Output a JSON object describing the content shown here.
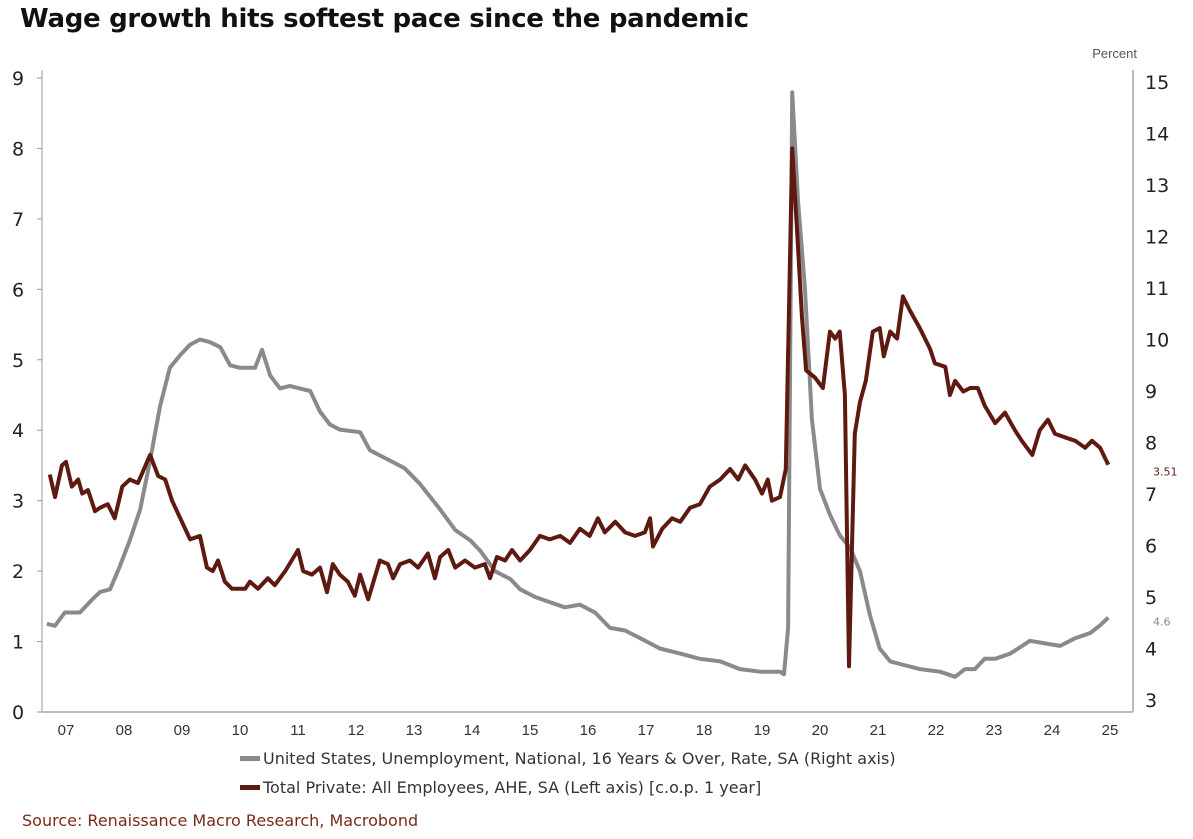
{
  "chart_data": {
    "type": "line",
    "title": "Wage growth hits softest pace since the pandemic",
    "right_axis_unit": "Percent",
    "x_tick_labels": [
      "07",
      "08",
      "09",
      "10",
      "11",
      "12",
      "13",
      "14",
      "15",
      "16",
      "17",
      "18",
      "19",
      "20",
      "21",
      "22",
      "23",
      "24",
      "25"
    ],
    "left_axis": {
      "ylim": [
        0,
        9
      ],
      "ticks": [
        0,
        1,
        2,
        3,
        4,
        5,
        6,
        7,
        8,
        9
      ]
    },
    "right_axis": {
      "ylim": [
        3,
        15
      ],
      "ticks": [
        3,
        4,
        5,
        6,
        7,
        8,
        9,
        10,
        11,
        12,
        13,
        14,
        15
      ]
    },
    "grid": false,
    "legend_placement": "bottom",
    "colors": {
      "unemployment": "#8a8a8a",
      "ahe": "#5e1a10",
      "source": "#7a2a1a"
    },
    "series": [
      {
        "name": "United States, Unemployment, National, 16 Years & Over, Rate, SA (Right axis)",
        "axis": "right",
        "end_label": "4.6",
        "points": [
          [
            2007.17,
            4.48
          ],
          [
            2007.31,
            4.44
          ],
          [
            2007.48,
            4.7
          ],
          [
            2007.74,
            4.7
          ],
          [
            2007.95,
            4.95
          ],
          [
            2008.09,
            5.1
          ],
          [
            2008.26,
            5.15
          ],
          [
            2008.43,
            5.6
          ],
          [
            2008.6,
            6.1
          ],
          [
            2008.78,
            6.7
          ],
          [
            2008.95,
            7.65
          ],
          [
            2009.12,
            8.7
          ],
          [
            2009.29,
            9.45
          ],
          [
            2009.47,
            9.7
          ],
          [
            2009.64,
            9.9
          ],
          [
            2009.81,
            10.0
          ],
          [
            2009.98,
            9.95
          ],
          [
            2010.16,
            9.85
          ],
          [
            2010.33,
            9.5
          ],
          [
            2010.5,
            9.45
          ],
          [
            2010.76,
            9.45
          ],
          [
            2010.88,
            9.8
          ],
          [
            2011.02,
            9.3
          ],
          [
            2011.19,
            9.05
          ],
          [
            2011.36,
            9.1
          ],
          [
            2011.53,
            9.05
          ],
          [
            2011.71,
            9.0
          ],
          [
            2011.88,
            8.6
          ],
          [
            2012.05,
            8.35
          ],
          [
            2012.22,
            8.25
          ],
          [
            2012.57,
            8.2
          ],
          [
            2012.74,
            7.85
          ],
          [
            2012.91,
            7.75
          ],
          [
            2013.17,
            7.6
          ],
          [
            2013.34,
            7.5
          ],
          [
            2013.6,
            7.2
          ],
          [
            2013.95,
            6.7
          ],
          [
            2014.21,
            6.3
          ],
          [
            2014.47,
            6.1
          ],
          [
            2014.64,
            5.9
          ],
          [
            2014.9,
            5.5
          ],
          [
            2015.16,
            5.35
          ],
          [
            2015.33,
            5.15
          ],
          [
            2015.59,
            5.0
          ],
          [
            2015.84,
            4.9
          ],
          [
            2016.1,
            4.8
          ],
          [
            2016.36,
            4.85
          ],
          [
            2016.62,
            4.7
          ],
          [
            2016.88,
            4.4
          ],
          [
            2017.14,
            4.35
          ],
          [
            2017.4,
            4.2
          ],
          [
            2017.74,
            4.0
          ],
          [
            2018.09,
            3.9
          ],
          [
            2018.43,
            3.8
          ],
          [
            2018.78,
            3.75
          ],
          [
            2019.12,
            3.6
          ],
          [
            2019.47,
            3.55
          ],
          [
            2019.81,
            3.55
          ],
          [
            2019.88,
            3.5
          ],
          [
            2019.95,
            4.4
          ],
          [
            2020.02,
            14.8
          ],
          [
            2020.12,
            12.7
          ],
          [
            2020.24,
            11.0
          ],
          [
            2020.36,
            8.45
          ],
          [
            2020.5,
            7.1
          ],
          [
            2020.67,
            6.6
          ],
          [
            2020.84,
            6.2
          ],
          [
            2021.02,
            5.95
          ],
          [
            2021.19,
            5.5
          ],
          [
            2021.36,
            4.65
          ],
          [
            2021.53,
            4.0
          ],
          [
            2021.71,
            3.75
          ],
          [
            2021.88,
            3.7
          ],
          [
            2022.22,
            3.6
          ],
          [
            2022.57,
            3.55
          ],
          [
            2022.83,
            3.45
          ],
          [
            2023.0,
            3.6
          ],
          [
            2023.17,
            3.6
          ],
          [
            2023.34,
            3.8
          ],
          [
            2023.52,
            3.8
          ],
          [
            2023.78,
            3.9
          ],
          [
            2024.12,
            4.15
          ],
          [
            2024.38,
            4.1
          ],
          [
            2024.64,
            4.05
          ],
          [
            2024.9,
            4.2
          ],
          [
            2025.16,
            4.3
          ],
          [
            2025.33,
            4.45
          ],
          [
            2025.47,
            4.6
          ]
        ]
      },
      {
        "name": "Total Private: All Employees, AHE, SA (Left axis) [c.o.p. 1 year]",
        "axis": "left",
        "end_label": "3.51",
        "points": [
          [
            2007.22,
            3.37
          ],
          [
            2007.31,
            3.05
          ],
          [
            2007.43,
            3.5
          ],
          [
            2007.5,
            3.55
          ],
          [
            2007.6,
            3.2
          ],
          [
            2007.71,
            3.3
          ],
          [
            2007.78,
            3.1
          ],
          [
            2007.88,
            3.15
          ],
          [
            2008.0,
            2.85
          ],
          [
            2008.09,
            2.9
          ],
          [
            2008.22,
            2.95
          ],
          [
            2008.34,
            2.75
          ],
          [
            2008.47,
            3.2
          ],
          [
            2008.6,
            3.3
          ],
          [
            2008.74,
            3.25
          ],
          [
            2008.95,
            3.65
          ],
          [
            2009.09,
            3.35
          ],
          [
            2009.21,
            3.3
          ],
          [
            2009.33,
            3.0
          ],
          [
            2009.47,
            2.75
          ],
          [
            2009.64,
            2.45
          ],
          [
            2009.81,
            2.5
          ],
          [
            2009.93,
            2.05
          ],
          [
            2010.03,
            2.0
          ],
          [
            2010.12,
            2.15
          ],
          [
            2010.24,
            1.85
          ],
          [
            2010.36,
            1.75
          ],
          [
            2010.59,
            1.75
          ],
          [
            2010.67,
            1.85
          ],
          [
            2010.81,
            1.75
          ],
          [
            2010.98,
            1.9
          ],
          [
            2011.1,
            1.8
          ],
          [
            2011.28,
            2.0
          ],
          [
            2011.5,
            2.3
          ],
          [
            2011.59,
            2.0
          ],
          [
            2011.74,
            1.95
          ],
          [
            2011.88,
            2.05
          ],
          [
            2012.0,
            1.7
          ],
          [
            2012.1,
            2.1
          ],
          [
            2012.22,
            1.95
          ],
          [
            2012.36,
            1.85
          ],
          [
            2012.48,
            1.65
          ],
          [
            2012.57,
            1.95
          ],
          [
            2012.71,
            1.6
          ],
          [
            2012.91,
            2.15
          ],
          [
            2013.05,
            2.1
          ],
          [
            2013.14,
            1.9
          ],
          [
            2013.26,
            2.1
          ],
          [
            2013.43,
            2.15
          ],
          [
            2013.57,
            2.05
          ],
          [
            2013.74,
            2.25
          ],
          [
            2013.86,
            1.9
          ],
          [
            2013.95,
            2.2
          ],
          [
            2014.09,
            2.3
          ],
          [
            2014.21,
            2.05
          ],
          [
            2014.38,
            2.15
          ],
          [
            2014.55,
            2.05
          ],
          [
            2014.72,
            2.1
          ],
          [
            2014.81,
            1.9
          ],
          [
            2014.93,
            2.2
          ],
          [
            2015.07,
            2.15
          ],
          [
            2015.19,
            2.3
          ],
          [
            2015.33,
            2.15
          ],
          [
            2015.5,
            2.3
          ],
          [
            2015.67,
            2.5
          ],
          [
            2015.84,
            2.45
          ],
          [
            2016.02,
            2.5
          ],
          [
            2016.19,
            2.4
          ],
          [
            2016.36,
            2.6
          ],
          [
            2016.53,
            2.5
          ],
          [
            2016.67,
            2.75
          ],
          [
            2016.79,
            2.55
          ],
          [
            2016.97,
            2.7
          ],
          [
            2017.14,
            2.55
          ],
          [
            2017.31,
            2.5
          ],
          [
            2017.48,
            2.55
          ],
          [
            2017.57,
            2.75
          ],
          [
            2017.62,
            2.35
          ],
          [
            2017.78,
            2.6
          ],
          [
            2017.95,
            2.75
          ],
          [
            2018.09,
            2.7
          ],
          [
            2018.26,
            2.9
          ],
          [
            2018.43,
            2.95
          ],
          [
            2018.6,
            3.2
          ],
          [
            2018.78,
            3.3
          ],
          [
            2018.95,
            3.45
          ],
          [
            2019.09,
            3.3
          ],
          [
            2019.21,
            3.5
          ],
          [
            2019.38,
            3.3
          ],
          [
            2019.5,
            3.1
          ],
          [
            2019.6,
            3.3
          ],
          [
            2019.67,
            3.0
          ],
          [
            2019.81,
            3.05
          ],
          [
            2019.91,
            3.45
          ],
          [
            2020.02,
            8.0
          ],
          [
            2020.1,
            6.9
          ],
          [
            2020.19,
            5.6
          ],
          [
            2020.26,
            4.85
          ],
          [
            2020.41,
            4.75
          ],
          [
            2020.55,
            4.6
          ],
          [
            2020.67,
            5.4
          ],
          [
            2020.76,
            5.3
          ],
          [
            2020.84,
            5.4
          ],
          [
            2020.93,
            4.5
          ],
          [
            2021.0,
            0.65
          ],
          [
            2021.1,
            3.95
          ],
          [
            2021.19,
            4.4
          ],
          [
            2021.29,
            4.7
          ],
          [
            2021.41,
            5.4
          ],
          [
            2021.53,
            5.45
          ],
          [
            2021.6,
            5.05
          ],
          [
            2021.71,
            5.4
          ],
          [
            2021.83,
            5.3
          ],
          [
            2021.93,
            5.9
          ],
          [
            2022.05,
            5.7
          ],
          [
            2022.22,
            5.45
          ],
          [
            2022.4,
            5.15
          ],
          [
            2022.48,
            4.95
          ],
          [
            2022.66,
            4.9
          ],
          [
            2022.74,
            4.5
          ],
          [
            2022.83,
            4.7
          ],
          [
            2022.97,
            4.55
          ],
          [
            2023.09,
            4.6
          ],
          [
            2023.22,
            4.6
          ],
          [
            2023.34,
            4.35
          ],
          [
            2023.52,
            4.1
          ],
          [
            2023.69,
            4.25
          ],
          [
            2023.86,
            4.0
          ],
          [
            2023.98,
            3.85
          ],
          [
            2024.16,
            3.65
          ],
          [
            2024.29,
            4.0
          ],
          [
            2024.43,
            4.15
          ],
          [
            2024.55,
            3.95
          ],
          [
            2024.72,
            3.9
          ],
          [
            2024.9,
            3.85
          ],
          [
            2025.07,
            3.75
          ],
          [
            2025.19,
            3.85
          ],
          [
            2025.33,
            3.75
          ],
          [
            2025.47,
            3.51
          ]
        ]
      }
    ],
    "source": "Source: Renaissance Macro Research, Macrobond"
  }
}
